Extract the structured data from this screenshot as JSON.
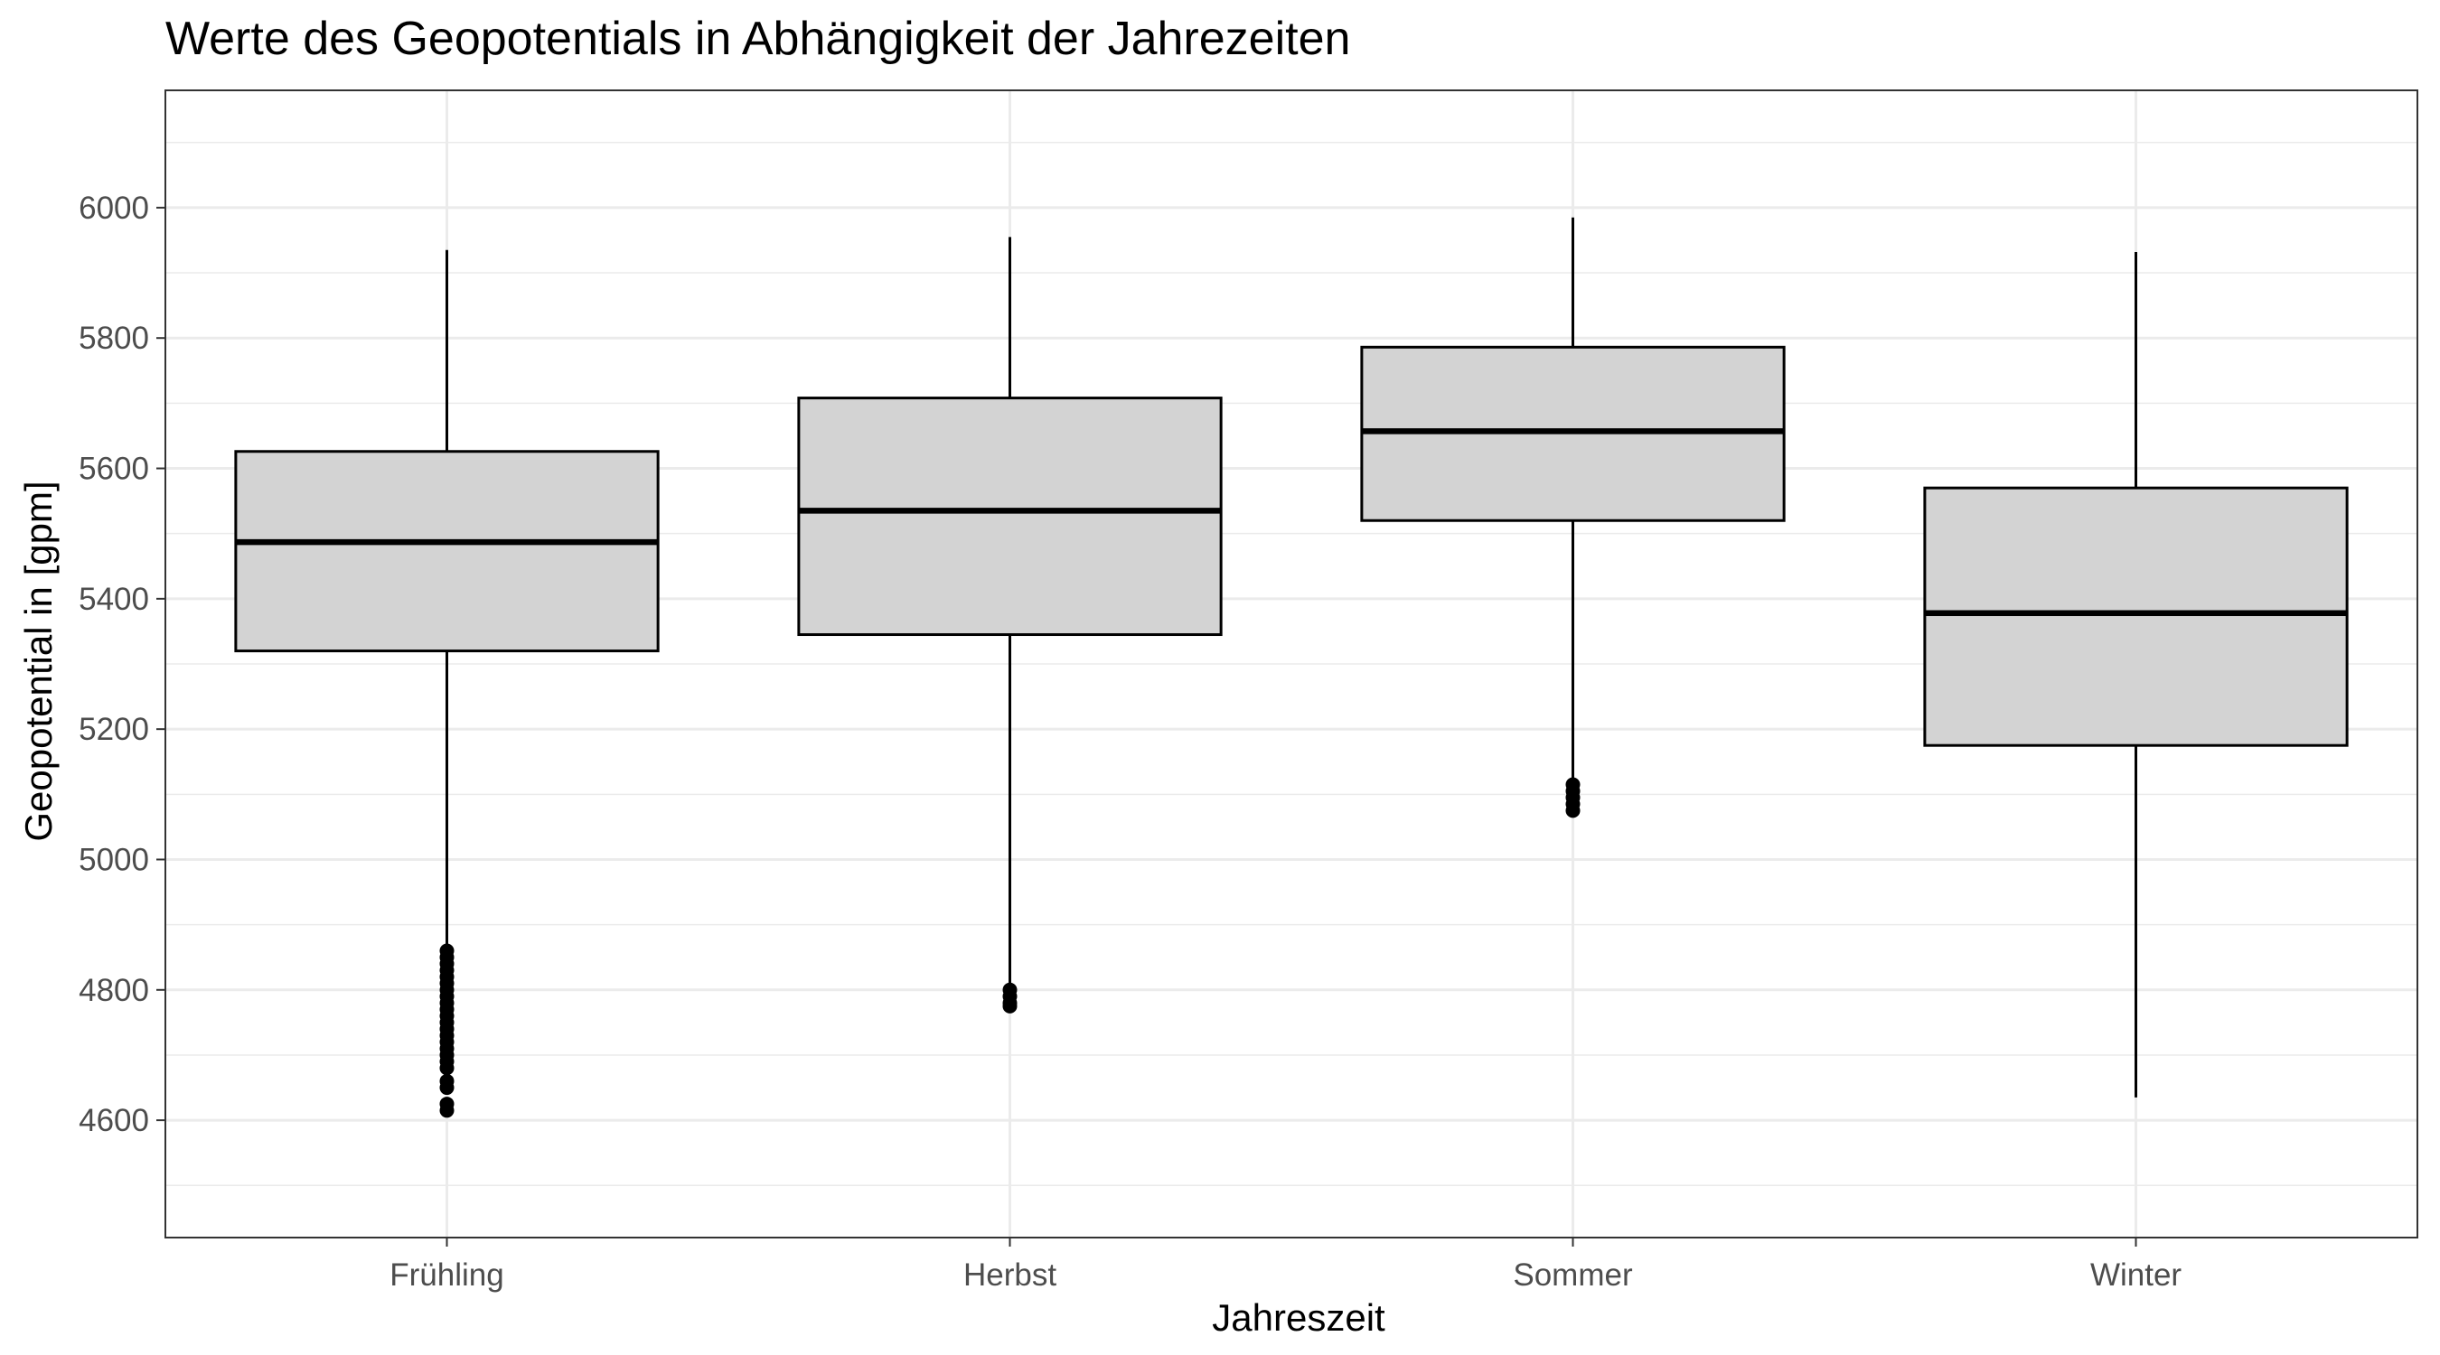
{
  "chart_data": {
    "type": "boxplot",
    "title": "Werte des Geopotentials in Abhängigkeit der Jahrezeiten",
    "xlabel": "Jahreszeit",
    "ylabel": "Geopotential in [gpm]",
    "ylim": [
      4420,
      6180
    ],
    "yticks": [
      4600,
      4800,
      5000,
      5200,
      5400,
      5600,
      5800,
      6000
    ],
    "grid": true,
    "theme": "black-and-white",
    "box_fill": "#d3d3d3",
    "categories": [
      "Frühling",
      "Herbst",
      "Sommer",
      "Winter"
    ],
    "boxes": [
      {
        "category": "Frühling",
        "whisker_low": 4865,
        "q1": 5320,
        "median": 5487,
        "q3": 5626,
        "whisker_high": 5935,
        "outliers": [
          4860,
          4850,
          4840,
          4830,
          4820,
          4810,
          4800,
          4790,
          4780,
          4770,
          4760,
          4750,
          4740,
          4730,
          4720,
          4710,
          4700,
          4690,
          4680,
          4660,
          4650,
          4625,
          4615
        ]
      },
      {
        "category": "Herbst",
        "whisker_low": 4810,
        "q1": 5345,
        "median": 5535,
        "q3": 5708,
        "whisker_high": 5955,
        "outliers": [
          4800,
          4790,
          4780,
          4775
        ]
      },
      {
        "category": "Sommer",
        "whisker_low": 5120,
        "q1": 5520,
        "median": 5657,
        "q3": 5786,
        "whisker_high": 5985,
        "outliers": [
          5115,
          5105,
          5095,
          5085,
          5075
        ]
      },
      {
        "category": "Winter",
        "whisker_low": 4635,
        "q1": 5175,
        "median": 5378,
        "q3": 5570,
        "whisker_high": 5932,
        "outliers": []
      }
    ]
  }
}
